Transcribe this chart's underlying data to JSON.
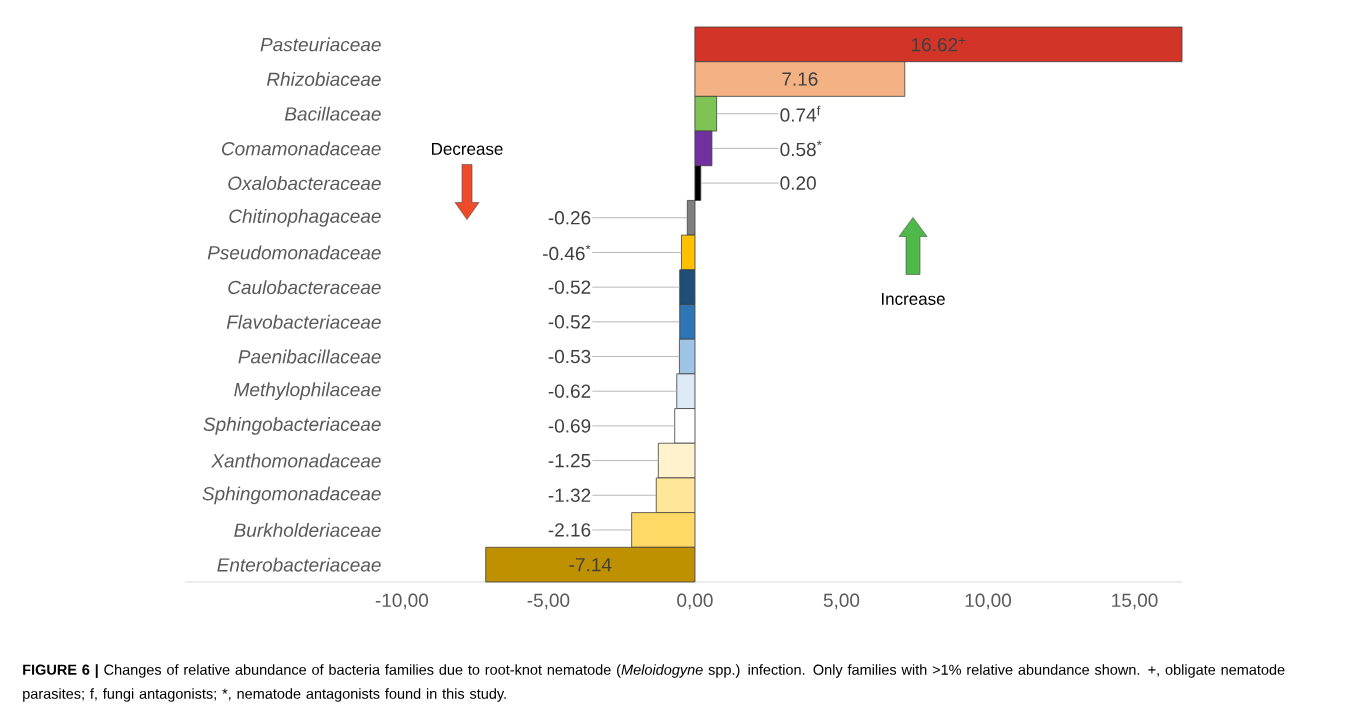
{
  "chart_data": {
    "type": "bar",
    "orientation": "horizontal",
    "categories": [
      "Pasteuriaceae",
      "Rhizobiaceae",
      "Bacillaceae",
      "Comamonadaceae",
      "Oxalobacteraceae",
      "Chitinophagaceae",
      "Pseudomonadaceae",
      "Caulobacteraceae",
      "Flavobacteriaceae",
      "Paenibacillaceae",
      "Methylophilaceae",
      "Sphingobacteriaceae",
      "Xanthomonadaceae",
      "Sphingomonadaceae",
      "Burkholderiaceae",
      "Enterobacteriaceae"
    ],
    "values": [
      16.62,
      7.16,
      0.74,
      0.58,
      0.2,
      -0.26,
      -0.46,
      -0.52,
      -0.52,
      -0.53,
      -0.62,
      -0.69,
      -1.25,
      -1.32,
      -2.16,
      -7.14
    ],
    "colors": [
      "#d23527",
      "#f4b183",
      "#7ec353",
      "#7030a0",
      "#000000",
      "#7f7f7f",
      "#ffc000",
      "#1f4e79",
      "#2e75b6",
      "#9dc3e6",
      "#deebf7",
      "#ffffff",
      "#fff2cc",
      "#ffe699",
      "#ffd966",
      "#bf9000"
    ],
    "value_labels": [
      "16.62$^{+}$",
      "7.16",
      "0.74$^{f}$",
      "0.58$^{*}$",
      "0.20",
      "-0.26",
      "-0.46$^{*}$",
      "-0.52",
      "-0.52",
      "-0.53",
      "-0.62",
      "-0.69",
      "-1.25",
      "-1.32",
      "-2.16",
      "-7.14"
    ],
    "xlim": [
      -17.4,
      16.62
    ],
    "xticks": [
      {
        "value": -10,
        "label": "-10,00"
      },
      {
        "value": -5,
        "label": "-5,00"
      },
      {
        "value": 0,
        "label": "0,00"
      },
      {
        "value": 5,
        "label": "5,00"
      },
      {
        "value": 10,
        "label": "10,00"
      },
      {
        "value": 15,
        "label": "15,00"
      }
    ],
    "annotations": [
      "Decrease",
      "Increase",
      "**FIGURE 6 |** Changes of relative abundance of bacteria families due to root-knot nematode (*Meloidogyne* spp.) infection. Only families with >1% relative abundance shown. +, obligate nematode parasites; f, fungi antagonists; *, nematode antagonists found in this study."
    ]
  }
}
